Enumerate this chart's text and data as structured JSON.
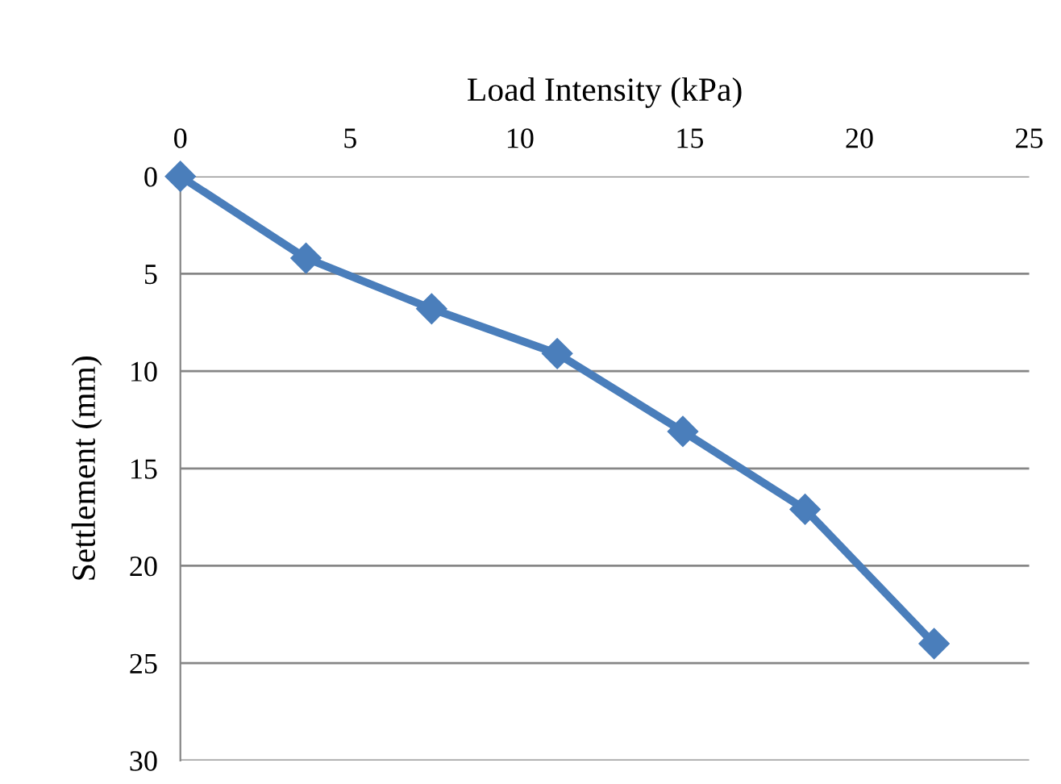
{
  "chart_data": {
    "type": "line",
    "xlabel": "Load Intensity (kPa)",
    "ylabel": "Settlement (mm)",
    "x": [
      0,
      3.7,
      7.4,
      11.1,
      14.8,
      18.4,
      22.2
    ],
    "series": [
      {
        "color": "#4a7ebb",
        "values": [
          0,
          4.2,
          6.8,
          9.1,
          13.1,
          17.1,
          24.0
        ]
      }
    ],
    "xlim": [
      0,
      25
    ],
    "xticks": [
      0,
      5,
      10,
      15,
      20,
      25
    ],
    "ylim": [
      30,
      0
    ],
    "yticks": [
      0,
      5,
      10,
      15,
      20,
      25,
      30
    ],
    "grid": "y",
    "marker": "diamond",
    "line_style": "solid",
    "legend": false
  }
}
